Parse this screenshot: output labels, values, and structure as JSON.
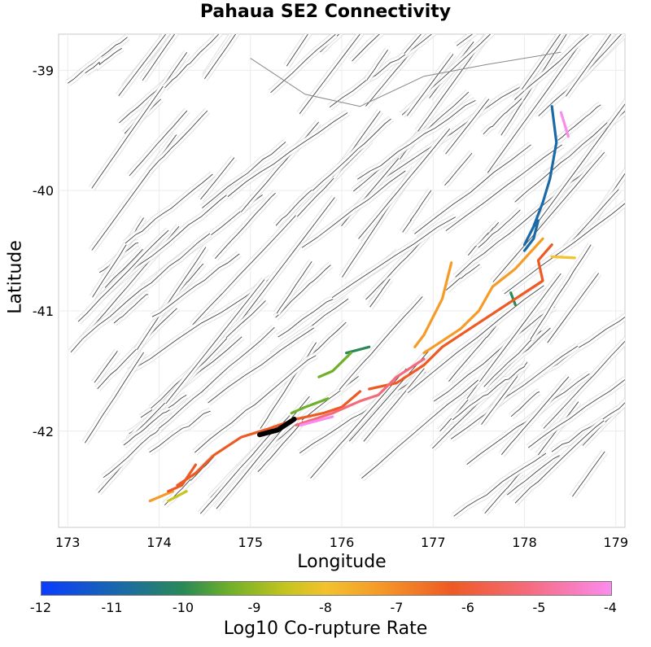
{
  "title": "Pahaua SE2 Connectivity",
  "x_axis": {
    "label": "Longitude",
    "ticks": [
      "173",
      "174",
      "175",
      "176",
      "177",
      "178",
      "179"
    ],
    "range": [
      172.9,
      179.1
    ]
  },
  "y_axis": {
    "label": "Latitude",
    "ticks": [
      "-39",
      "-40",
      "-41",
      "-42"
    ],
    "range": [
      -42.8,
      -38.7
    ]
  },
  "colorbar": {
    "label": "Log10 Co-rupture Rate",
    "ticks": [
      "-12",
      "-11",
      "-10",
      "-9",
      "-8",
      "-7",
      "-6",
      "-5",
      "-4"
    ],
    "colors": [
      "#0a3cff",
      "#1a6aa8",
      "#2a8a55",
      "#6fb02a",
      "#c6c41f",
      "#f3c22e",
      "#f59b28",
      "#ee5a24",
      "#f56a7a",
      "#fb8bee"
    ]
  },
  "legend": {
    "target_fault_color": "#000000",
    "background_fault_color": "#444444",
    "background_fault_grid_color": "#c8c8c8"
  },
  "chart_data": {
    "type": "map",
    "x_label": "Longitude",
    "y_label": "Latitude",
    "xlim": [
      172.9,
      179.1
    ],
    "ylim": [
      -42.8,
      -38.7
    ],
    "target_fault": [
      [
        175.1,
        -42.03
      ],
      [
        175.3,
        -41.99
      ],
      [
        175.48,
        -41.9
      ]
    ],
    "ruptures": [
      {
        "log10_rate": -11.2,
        "color": "#1a6aa8",
        "points": [
          [
            178.3,
            -39.3
          ],
          [
            178.35,
            -39.6
          ],
          [
            178.28,
            -39.9
          ],
          [
            178.2,
            -40.1
          ],
          [
            178.1,
            -40.3
          ],
          [
            178.0,
            -40.45
          ]
        ]
      },
      {
        "log10_rate": -10.8,
        "color": "#1a6aa8",
        "points": [
          [
            178.15,
            -40.25
          ],
          [
            178.1,
            -40.4
          ],
          [
            178.0,
            -40.5
          ]
        ]
      },
      {
        "log10_rate": -10.0,
        "color": "#2a8a55",
        "points": [
          [
            177.85,
            -40.85
          ],
          [
            177.9,
            -40.95
          ]
        ]
      },
      {
        "log10_rate": -10.5,
        "color": "#2a8a55",
        "points": [
          [
            176.3,
            -41.3
          ],
          [
            176.05,
            -41.35
          ]
        ]
      },
      {
        "log10_rate": -9.0,
        "color": "#6fb02a",
        "points": [
          [
            176.1,
            -41.35
          ],
          [
            175.9,
            -41.5
          ],
          [
            175.75,
            -41.55
          ]
        ]
      },
      {
        "log10_rate": -8.9,
        "color": "#6fb02a",
        "points": [
          [
            175.85,
            -41.73
          ],
          [
            175.6,
            -41.8
          ],
          [
            175.45,
            -41.85
          ]
        ]
      },
      {
        "log10_rate": -8.7,
        "color": "#c6c41f",
        "points": [
          [
            174.1,
            -42.58
          ],
          [
            174.3,
            -42.5
          ]
        ]
      },
      {
        "log10_rate": -8.3,
        "color": "#f3c22e",
        "points": [
          [
            178.3,
            -40.55
          ],
          [
            178.55,
            -40.56
          ]
        ]
      },
      {
        "log10_rate": -7.2,
        "color": "#f59b28",
        "points": [
          [
            178.2,
            -40.4
          ],
          [
            177.9,
            -40.65
          ],
          [
            177.65,
            -40.8
          ],
          [
            177.5,
            -41.0
          ],
          [
            177.3,
            -41.15
          ],
          [
            177.1,
            -41.25
          ],
          [
            176.9,
            -41.35
          ]
        ]
      },
      {
        "log10_rate": -7.0,
        "color": "#f59b28",
        "points": [
          [
            177.2,
            -40.6
          ],
          [
            177.1,
            -40.9
          ],
          [
            176.9,
            -41.2
          ],
          [
            176.8,
            -41.3
          ]
        ]
      },
      {
        "log10_rate": -7.0,
        "color": "#f59b28",
        "points": [
          [
            174.15,
            -42.5
          ],
          [
            173.9,
            -42.58
          ]
        ]
      },
      {
        "log10_rate": -6.2,
        "color": "#ee5a24",
        "points": [
          [
            178.3,
            -40.45
          ],
          [
            178.15,
            -40.58
          ],
          [
            178.2,
            -40.75
          ],
          [
            177.9,
            -40.9
          ],
          [
            177.7,
            -41.0
          ],
          [
            177.4,
            -41.15
          ],
          [
            177.1,
            -41.3
          ],
          [
            176.9,
            -41.45
          ],
          [
            176.6,
            -41.6
          ],
          [
            176.3,
            -41.65
          ]
        ]
      },
      {
        "log10_rate": -5.8,
        "color": "#ee5a24",
        "points": [
          [
            176.2,
            -41.67
          ],
          [
            176.0,
            -41.8
          ],
          [
            175.8,
            -41.85
          ],
          [
            175.5,
            -41.9
          ],
          [
            175.2,
            -41.98
          ],
          [
            174.9,
            -42.05
          ],
          [
            174.6,
            -42.2
          ],
          [
            174.4,
            -42.35
          ],
          [
            174.2,
            -42.45
          ]
        ]
      },
      {
        "log10_rate": -5.5,
        "color": "#ee5a24",
        "points": [
          [
            174.4,
            -42.28
          ],
          [
            174.25,
            -42.45
          ],
          [
            174.1,
            -42.5
          ]
        ]
      },
      {
        "log10_rate": -4.8,
        "color": "#f56a7a",
        "points": [
          [
            176.9,
            -41.4
          ],
          [
            176.6,
            -41.55
          ],
          [
            176.4,
            -41.7
          ],
          [
            176.2,
            -41.75
          ],
          [
            175.9,
            -41.85
          ],
          [
            175.7,
            -41.9
          ],
          [
            175.5,
            -41.95
          ]
        ]
      },
      {
        "log10_rate": -4.2,
        "color": "#fb8bee",
        "points": [
          [
            178.4,
            -39.35
          ],
          [
            178.48,
            -39.55
          ]
        ]
      },
      {
        "log10_rate": -4.3,
        "color": "#fb8bee",
        "points": [
          [
            175.9,
            -41.88
          ],
          [
            175.7,
            -41.92
          ],
          [
            175.55,
            -41.95
          ]
        ]
      }
    ]
  }
}
